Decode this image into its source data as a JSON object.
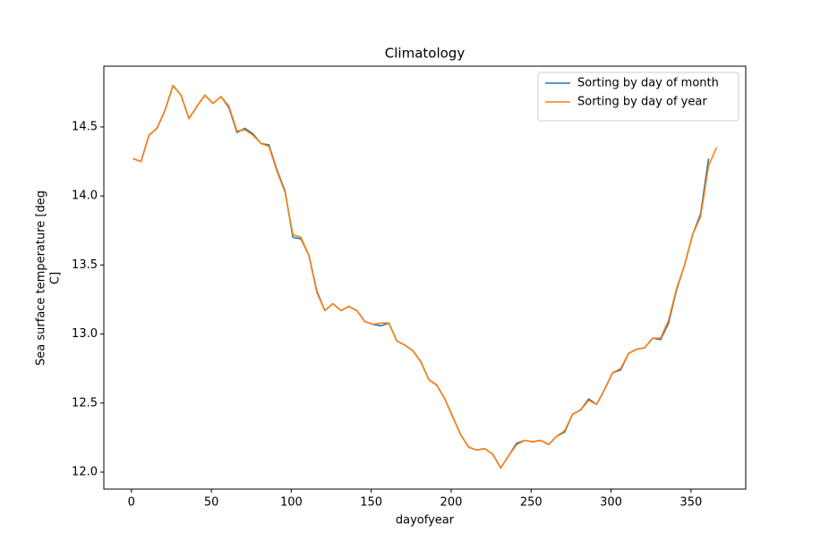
{
  "chart_data": {
    "type": "line",
    "title": "Climatology",
    "xlabel": "dayofyear",
    "ylabel_lines": [
      "Sea surface temperature [deg",
      "C]"
    ],
    "x": [
      1,
      6,
      11,
      16,
      21,
      26,
      31,
      36,
      41,
      46,
      51,
      56,
      61,
      66,
      71,
      76,
      81,
      86,
      91,
      96,
      101,
      106,
      111,
      116,
      121,
      126,
      131,
      136,
      141,
      146,
      151,
      156,
      161,
      166,
      171,
      176,
      181,
      186,
      191,
      196,
      201,
      206,
      211,
      216,
      221,
      226,
      231,
      236,
      241,
      246,
      251,
      256,
      261,
      266,
      271,
      276,
      281,
      286,
      291,
      296,
      301,
      306,
      311,
      316,
      321,
      326,
      331,
      336,
      341,
      346,
      351,
      356,
      361,
      366
    ],
    "series": [
      {
        "name": "Sorting by day of month",
        "color": "#1f77b4",
        "values": [
          14.27,
          14.25,
          14.44,
          14.49,
          14.62,
          14.8,
          14.73,
          14.56,
          14.65,
          14.73,
          14.67,
          14.72,
          14.64,
          14.46,
          14.49,
          14.45,
          14.38,
          14.37,
          14.19,
          14.04,
          13.7,
          13.69,
          13.57,
          13.31,
          13.17,
          13.22,
          13.17,
          13.2,
          13.17,
          13.09,
          13.07,
          13.06,
          13.08,
          12.95,
          12.92,
          12.88,
          12.8,
          12.67,
          12.63,
          12.53,
          12.4,
          12.27,
          12.18,
          12.16,
          12.17,
          12.13,
          12.03,
          12.12,
          12.21,
          12.23,
          12.22,
          12.23,
          12.2,
          12.26,
          12.29,
          12.42,
          12.45,
          12.53,
          12.49,
          12.6,
          12.72,
          12.74,
          12.86,
          12.89,
          12.9,
          12.97,
          12.96,
          13.08,
          13.32,
          13.5,
          13.72,
          13.87,
          14.27,
          null
        ]
      },
      {
        "name": "Sorting by day of year",
        "color": "#ff7f0e",
        "values": [
          14.27,
          14.25,
          14.44,
          14.49,
          14.62,
          14.8,
          14.73,
          14.56,
          14.65,
          14.73,
          14.67,
          14.72,
          14.65,
          14.47,
          14.48,
          14.44,
          14.38,
          14.36,
          14.18,
          14.03,
          13.72,
          13.7,
          13.57,
          13.3,
          13.17,
          13.22,
          13.17,
          13.2,
          13.17,
          13.09,
          13.07,
          13.08,
          13.08,
          12.95,
          12.92,
          12.88,
          12.8,
          12.67,
          12.63,
          12.53,
          12.4,
          12.27,
          12.18,
          12.16,
          12.17,
          12.13,
          12.03,
          12.12,
          12.2,
          12.23,
          12.22,
          12.23,
          12.2,
          12.26,
          12.3,
          12.42,
          12.45,
          12.52,
          12.49,
          12.6,
          12.72,
          12.75,
          12.86,
          12.89,
          12.9,
          12.97,
          12.97,
          13.1,
          13.33,
          13.5,
          13.72,
          13.85,
          14.22,
          14.35
        ]
      }
    ],
    "xlim": [
      -17.25,
      384.25
    ],
    "xticks": [
      0,
      50,
      100,
      150,
      200,
      250,
      300,
      350
    ],
    "ylim": [
      11.877,
      14.94
    ],
    "yticks": [
      {
        "value": 12,
        "label": "12.0"
      },
      12.5,
      {
        "value": 13,
        "label": "13.0"
      },
      13.5,
      {
        "value": 14,
        "label": "14.0"
      },
      14.5
    ],
    "grid": false,
    "legend": "upper right"
  }
}
